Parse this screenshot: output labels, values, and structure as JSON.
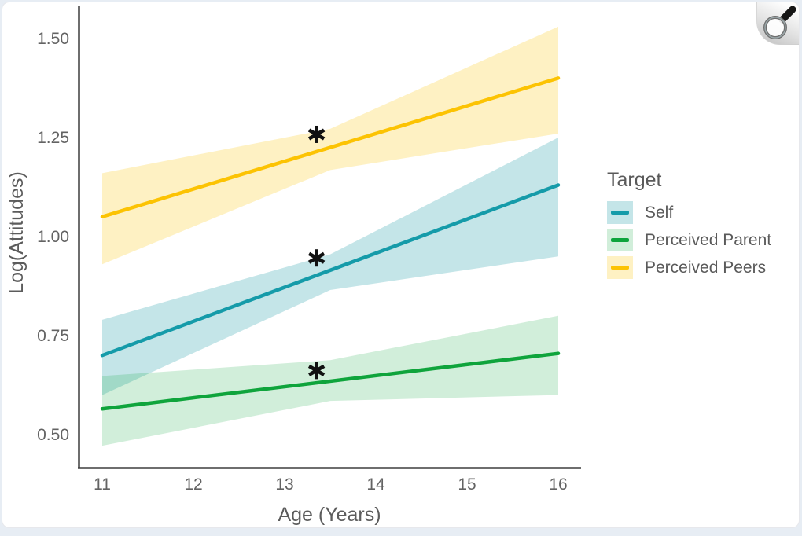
{
  "viewer": {
    "zoom_button": {
      "icon": "magnifier",
      "tooltip": "Zoom image"
    }
  },
  "chart_data": {
    "type": "line",
    "title": "",
    "xlabel": "Age (Years)",
    "ylabel": "Log(Attitudes)",
    "xlim": [
      11,
      16
    ],
    "ylim": [
      0.45,
      1.55
    ],
    "x_ticks": [
      11,
      12,
      13,
      14,
      15,
      16
    ],
    "y_ticks": [
      {
        "value": 1.5,
        "label": "1.50"
      },
      {
        "value": 1.25,
        "label": "1.25"
      },
      {
        "value": 1.0,
        "label": "1.00"
      },
      {
        "value": 0.75,
        "label": "0.75"
      },
      {
        "value": 0.5,
        "label": "0.50"
      }
    ],
    "grid": false,
    "legend": {
      "title": "Target",
      "position": "right"
    },
    "axis_color": "#3f3f3f",
    "tick_label_color": "#636363",
    "series": [
      {
        "name": "Self",
        "color": "#159BA9",
        "band_color": "rgba(18,150,165,0.25)",
        "x": [
          11,
          16
        ],
        "y": [
          0.7,
          1.13
        ],
        "ci_x": [
          11,
          13.5,
          16
        ],
        "ci_upper": [
          0.79,
          0.955,
          1.25
        ],
        "ci_lower": [
          0.6,
          0.865,
          0.95
        ]
      },
      {
        "name": "Perceived Parent",
        "color": "#0FA43C",
        "band_color": "rgba(13,163,60,0.19)",
        "x": [
          11,
          16
        ],
        "y": [
          0.565,
          0.705
        ],
        "ci_x": [
          11,
          13.5,
          16
        ],
        "ci_upper": [
          0.648,
          0.688,
          0.8
        ],
        "ci_lower": [
          0.472,
          0.585,
          0.6
        ]
      },
      {
        "name": "Perceived Peers",
        "color": "#FCC303",
        "band_color": "rgba(252,195,3,0.24)",
        "x": [
          11,
          16
        ],
        "y": [
          1.05,
          1.4
        ],
        "ci_x": [
          11,
          13.5,
          16
        ],
        "ci_upper": [
          1.16,
          1.272,
          1.53
        ],
        "ci_lower": [
          0.93,
          1.168,
          1.26
        ]
      }
    ],
    "annotations": [
      {
        "symbol": "*",
        "x": 13.35,
        "y": 1.258,
        "series": "Perceived Peers"
      },
      {
        "symbol": "*",
        "x": 13.35,
        "y": 0.946,
        "series": "Self"
      },
      {
        "symbol": "*",
        "x": 13.35,
        "y": 0.662,
        "series": "Perceived Parent"
      }
    ]
  }
}
